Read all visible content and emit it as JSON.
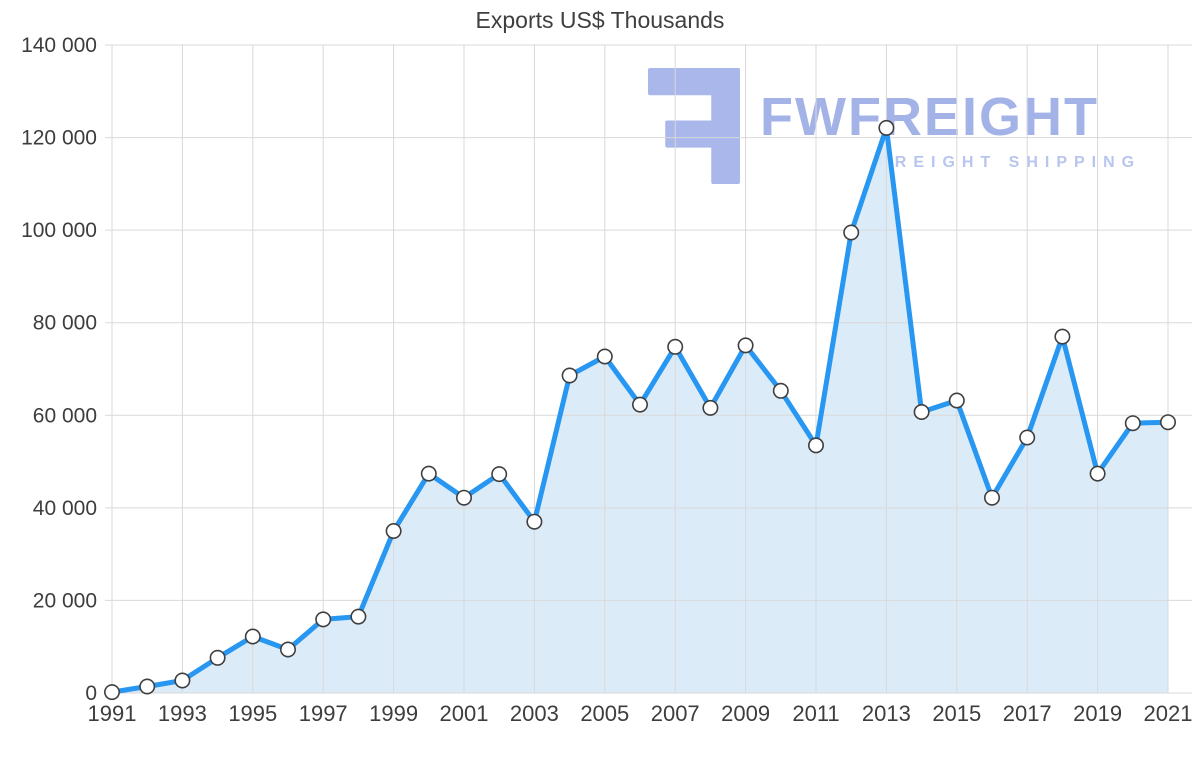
{
  "chart_data": {
    "type": "area",
    "title": "Exports US$ Thousands",
    "xlabel": "",
    "ylabel": "",
    "x": [
      1991,
      1992,
      1993,
      1994,
      1995,
      1996,
      1997,
      1998,
      1999,
      2000,
      2001,
      2002,
      2003,
      2004,
      2005,
      2006,
      2007,
      2008,
      2009,
      2010,
      2011,
      2012,
      2013,
      2014,
      2015,
      2016,
      2017,
      2018,
      2019,
      2020,
      2021
    ],
    "values": [
      200,
      1400,
      2700,
      7600,
      12200,
      9400,
      15900,
      16500,
      35000,
      47400,
      42200,
      47300,
      37000,
      68600,
      72700,
      62300,
      74800,
      61600,
      75100,
      65300,
      53500,
      99500,
      122100,
      60700,
      63200,
      42200,
      55200,
      77000,
      47400,
      58300,
      58500
    ],
    "ylim": [
      0,
      140000
    ],
    "ytick_step": 20000,
    "xtick_label_step": 2,
    "grid": true,
    "legend_position": "none",
    "line_color": "#2797f2",
    "fill_color": "#daeaf8",
    "marker_fill": "#ffffff",
    "marker_stroke": "#3f3f3f",
    "grid_color": "#d9d9d9",
    "label_color": "#3d3d3d"
  },
  "watermark": {
    "brand": "FWFREIGHT",
    "tagline": "FREIGHT SHIPPING",
    "brand_color": "#a3b3e8",
    "tagline_color": "#b7c5ef",
    "logo_color": "#a9b7eb"
  }
}
